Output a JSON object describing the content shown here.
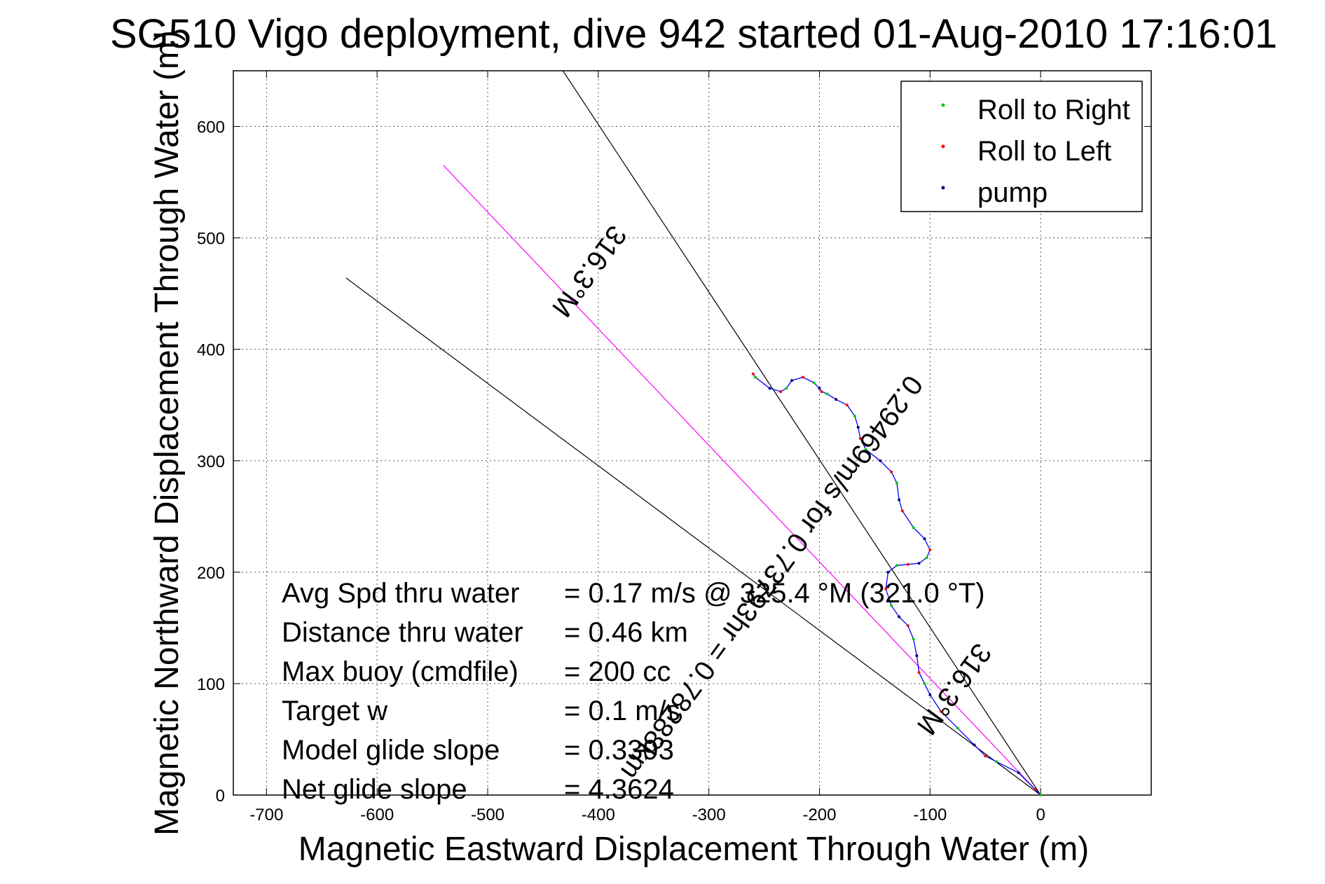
{
  "chart_data": {
    "type": "line",
    "title": "SG510 Vigo deployment, dive 942 started 01-Aug-2010 17:16:01",
    "xlabel": "Magnetic Eastward Displacement Through Water (m)",
    "ylabel": "Magnetic Northward Displacement Through Water (m)",
    "xlim": [
      -730,
      100
    ],
    "ylim": [
      0,
      650
    ],
    "xticks": [
      -700,
      -600,
      -500,
      -400,
      -300,
      -200,
      -100,
      0
    ],
    "yticks": [
      0,
      100,
      200,
      300,
      400,
      500,
      600
    ],
    "grid": true,
    "legend": {
      "placement": "top-right",
      "entries": [
        {
          "label": "Roll to Right",
          "color": "#00cc00"
        },
        {
          "label": "Roll to Left",
          "color": "#ff0000"
        },
        {
          "label": "pump",
          "color": "#000080"
        }
      ]
    },
    "reference_lines": [
      {
        "name": "heading-line-steep",
        "x": [
          0,
          -432
        ],
        "y": [
          0,
          650
        ],
        "color": "#000000"
      },
      {
        "name": "heading-line-mid",
        "x": [
          0,
          -540
        ],
        "y": [
          0,
          565
        ],
        "color": "#ff00ff"
      },
      {
        "name": "heading-line-shallow",
        "x": [
          0,
          -628
        ],
        "y": [
          0,
          464
        ],
        "color": "#000000"
      }
    ],
    "track": {
      "color": "#0000ff",
      "x": [
        0,
        -5,
        -20,
        -40,
        -50,
        -60,
        -75,
        -90,
        -100,
        -105,
        -110,
        -112,
        -115,
        -120,
        -128,
        -135,
        -140,
        -138,
        -130,
        -120,
        -110,
        -103,
        -100,
        -105,
        -115,
        -125,
        -128,
        -130,
        -135,
        -145,
        -158,
        -163,
        -165,
        -168,
        -175,
        -185,
        -193,
        -198,
        -200,
        -205,
        -215,
        -225,
        -230,
        -235,
        -245,
        -258,
        -260
      ],
      "y": [
        0,
        5,
        20,
        30,
        35,
        45,
        60,
        75,
        90,
        100,
        110,
        125,
        140,
        152,
        160,
        170,
        185,
        200,
        206,
        207,
        208,
        213,
        220,
        230,
        240,
        255,
        265,
        280,
        290,
        300,
        310,
        320,
        330,
        340,
        350,
        355,
        360,
        362,
        365,
        370,
        375,
        372,
        365,
        362,
        365,
        375,
        378
      ]
    },
    "annotations": [
      {
        "text": "316.3°M",
        "x": -415,
        "y": 475,
        "angle": 126
      },
      {
        "text": "0.29469m/s for 0.73793hr = 0.78288km",
        "x": -250,
        "y": 200,
        "angle": 126
      },
      {
        "text": "316.3°M",
        "x": -85,
        "y": 100,
        "angle": 126
      }
    ],
    "stats": [
      {
        "label": "Avg Spd thru water",
        "value": "=  0.17 m/s @ 325.4 °M (321.0 °T)"
      },
      {
        "label": "Distance thru water",
        "value": "=  0.46 km"
      },
      {
        "label": "Max buoy (cmdfile)",
        "value": "= 200 cc"
      },
      {
        "label": "Target w",
        "value": "= 0.1 m/s"
      },
      {
        "label": "Model glide slope",
        "value": "= 0.3393"
      },
      {
        "label": "Net glide slope",
        "value": "= 4.3624"
      }
    ]
  }
}
